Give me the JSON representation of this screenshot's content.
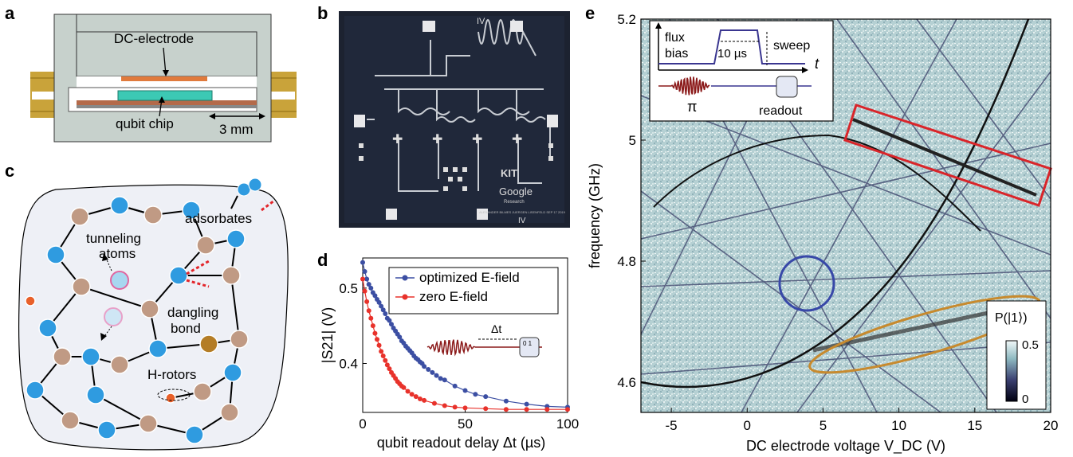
{
  "panels": {
    "a": {
      "letter": "a",
      "electrode_label": "DC-electrode",
      "chip_label": "qubit chip",
      "scale_label": "3 mm"
    },
    "b": {
      "letter": "b",
      "chip_mark_top": "IV",
      "chip_mark_bottom": "IV",
      "logo_kit": "KIT",
      "logo_google": "Google",
      "logo_google_sub": "Research",
      "signature": "ALEXANDER BILMES JUERGEN LISENFELD SEP 17 2019"
    },
    "c": {
      "letter": "c",
      "adsorbates": "adsorbates",
      "tunneling_line1": "tunneling",
      "tunneling_line2": "atoms",
      "dangling_line1": "dangling",
      "dangling_line2": "bond",
      "hrotors": "H-rotors"
    },
    "d": {
      "letter": "d",
      "legend": [
        "optimized E-field",
        "zero E-field"
      ],
      "inset_delay": "Δt",
      "inset_readout": "0 1"
    },
    "e": {
      "letter": "e",
      "inset_flux1": "flux",
      "inset_flux2": "bias",
      "inset_time": "10 µs",
      "inset_sweep": "sweep",
      "inset_t": "t",
      "inset_pi": "π",
      "inset_readout": "readout",
      "colorbar_title": "P(|1⟩)",
      "colorbar_ticks": [
        "0.5",
        "0"
      ]
    }
  },
  "chart_data": [
    {
      "panel": "d",
      "type": "scatter",
      "xlabel": "qubit readout delay  Δt (µs)",
      "ylabel": "|S21| (V)",
      "xlim": [
        0,
        100
      ],
      "ylim": [
        0.335,
        0.54
      ],
      "xticks": [
        0,
        50,
        100
      ],
      "yticks": [
        0.4,
        0.5
      ],
      "legend_placement": "top-right",
      "series": [
        {
          "name": "optimized E-field",
          "color": "#3c4fa3",
          "x": [
            0,
            1,
            2,
            3,
            4,
            5,
            6,
            7,
            8,
            9,
            10,
            11,
            12,
            13,
            14,
            15,
            16,
            17,
            18,
            19,
            20,
            21,
            22,
            23,
            24,
            25,
            26,
            27,
            28,
            29,
            30,
            32,
            34,
            36,
            38,
            40,
            45,
            50,
            55,
            60,
            70,
            80,
            90,
            100
          ],
          "y": [
            0.534,
            0.522,
            0.512,
            0.505,
            0.5,
            0.494,
            0.49,
            0.485,
            0.481,
            0.476,
            0.471,
            0.466,
            0.46,
            0.457,
            0.452,
            0.447,
            0.443,
            0.439,
            0.435,
            0.43,
            0.427,
            0.423,
            0.42,
            0.417,
            0.414,
            0.41,
            0.407,
            0.405,
            0.402,
            0.4,
            0.396,
            0.392,
            0.388,
            0.384,
            0.38,
            0.378,
            0.37,
            0.364,
            0.359,
            0.356,
            0.35,
            0.346,
            0.343,
            0.342
          ]
        },
        {
          "name": "zero E-field",
          "color": "#e8322b",
          "x": [
            0,
            1,
            2,
            3,
            4,
            5,
            6,
            7,
            8,
            9,
            10,
            11,
            12,
            13,
            14,
            15,
            16,
            17,
            18,
            19,
            20,
            22,
            24,
            26,
            28,
            30,
            35,
            40,
            45,
            50,
            60,
            70,
            80,
            90,
            100
          ],
          "y": [
            0.512,
            0.496,
            0.482,
            0.47,
            0.46,
            0.45,
            0.44,
            0.432,
            0.424,
            0.416,
            0.41,
            0.404,
            0.398,
            0.393,
            0.388,
            0.384,
            0.38,
            0.376,
            0.373,
            0.37,
            0.368,
            0.363,
            0.359,
            0.356,
            0.353,
            0.351,
            0.347,
            0.344,
            0.342,
            0.341,
            0.34,
            0.339,
            0.339,
            0.339,
            0.339
          ]
        }
      ]
    },
    {
      "panel": "e",
      "type": "heatmap",
      "xlabel": "DC electrode voltage V_DC (V)",
      "ylabel": "frequency (GHz)",
      "xlim": [
        -7,
        20
      ],
      "ylim": [
        4.55,
        5.2
      ],
      "xticks": [
        -5,
        0,
        5,
        10,
        15,
        20
      ],
      "yticks": [
        4.6,
        4.8,
        5,
        5.2
      ],
      "colorbar_range": [
        0,
        0.5
      ]
    }
  ]
}
